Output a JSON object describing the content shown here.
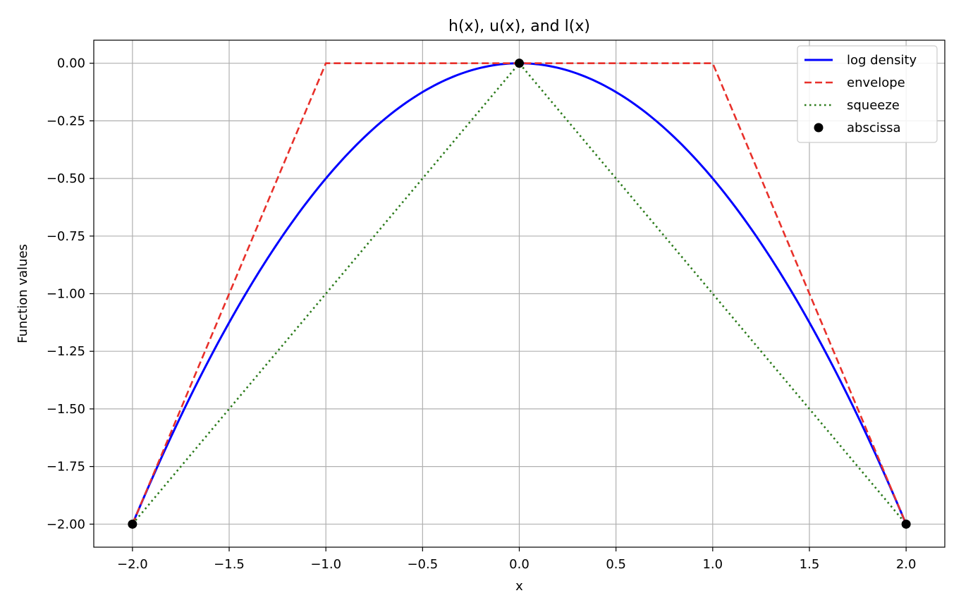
{
  "chart_data": {
    "type": "line",
    "title": "h(x), u(x), and l(x)",
    "xlabel": "x",
    "ylabel": "Function values",
    "xlim": [
      -2.2,
      2.2
    ],
    "ylim": [
      -2.1,
      0.1
    ],
    "xticks": [
      -2.0,
      -1.5,
      -1.0,
      -0.5,
      0.0,
      0.5,
      1.0,
      1.5,
      2.0
    ],
    "xtick_labels": [
      "−2.0",
      "−1.5",
      "−1.0",
      "−0.5",
      "0.0",
      "0.5",
      "1.0",
      "1.5",
      "2.0"
    ],
    "yticks": [
      0.0,
      -0.25,
      -0.5,
      -0.75,
      -1.0,
      -1.25,
      -1.5,
      -1.75,
      -2.0
    ],
    "ytick_labels": [
      "0.00",
      "−0.25",
      "−0.50",
      "−0.75",
      "−1.00",
      "−1.25",
      "−1.50",
      "−1.75",
      "−2.00"
    ],
    "grid": true,
    "legend_position": "top-right",
    "series": [
      {
        "name": "log density",
        "style": "solid",
        "color": "#0000ff",
        "function": "-x^2/2",
        "x": [
          -2.0,
          -1.75,
          -1.5,
          -1.25,
          -1.0,
          -0.75,
          -0.5,
          -0.25,
          0.0,
          0.25,
          0.5,
          0.75,
          1.0,
          1.25,
          1.5,
          1.75,
          2.0
        ],
        "y": [
          -2.0,
          -1.53125,
          -1.125,
          -0.78125,
          -0.5,
          -0.28125,
          -0.125,
          -0.03125,
          0.0,
          -0.03125,
          -0.125,
          -0.28125,
          -0.5,
          -0.78125,
          -1.125,
          -1.53125,
          -2.0
        ]
      },
      {
        "name": "envelope",
        "style": "dashed",
        "color": "#e8302a",
        "x": [
          -2.0,
          -1.0,
          1.0,
          2.0
        ],
        "y": [
          -2.0,
          0.0,
          0.0,
          -2.0
        ]
      },
      {
        "name": "squeeze",
        "style": "dotted",
        "color": "#2a7a1a",
        "x": [
          -2.0,
          0.0,
          2.0
        ],
        "y": [
          -2.0,
          0.0,
          -2.0
        ]
      },
      {
        "name": "abscissa",
        "style": "markers",
        "color": "#000000",
        "x": [
          -2.0,
          0.0,
          2.0
        ],
        "y": [
          -2.0,
          0.0,
          -2.0
        ]
      }
    ]
  }
}
